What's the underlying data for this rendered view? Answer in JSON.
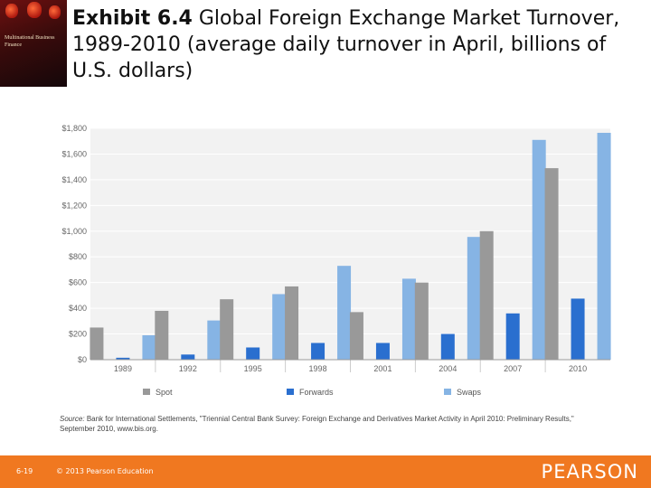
{
  "slide": {
    "title_bold": "Exhibit 6.4",
    "title_rest": "Global Foreign Exchange Market Turnover, 1989-2010 (average daily turnover in April, billions of U.S. dollars)",
    "source_label": "Source:",
    "source_text": "Bank for International Settlements, \"Triennial Central Bank Survey: Foreign Exchange and Derivatives Market Activity in April 2010: Preliminary Results,\" September 2010, www.bis.org.",
    "page_number": "6-19",
    "copyright": "© 2013 Pearson Education",
    "brand": "PEARSON",
    "book_cover_text": "Multinational Business Finance"
  },
  "colors": {
    "spot": "#999999",
    "forwards": "#2a6fcf",
    "swaps": "#86b4e4",
    "footer": "#f07820"
  },
  "chart_data": {
    "type": "bar",
    "categories": [
      "1989",
      "1992",
      "1995",
      "1998",
      "2001",
      "2004",
      "2007",
      "2010"
    ],
    "series": [
      {
        "name": "Spot",
        "values": [
          250,
          380,
          470,
          570,
          370,
          600,
          1000,
          1490
        ]
      },
      {
        "name": "Forwards",
        "values": [
          15,
          40,
          95,
          130,
          130,
          200,
          360,
          475
        ]
      },
      {
        "name": "Swaps",
        "values": [
          190,
          305,
          510,
          730,
          630,
          955,
          1710,
          1765
        ]
      }
    ],
    "y_ticks": [
      "$0",
      "$200",
      "$400",
      "$600",
      "$800",
      "$1,000",
      "$1,200",
      "$1,400",
      "$1,600",
      "$1,800"
    ],
    "ylim": [
      0,
      1800
    ],
    "grid": true,
    "legend_position": "bottom"
  }
}
